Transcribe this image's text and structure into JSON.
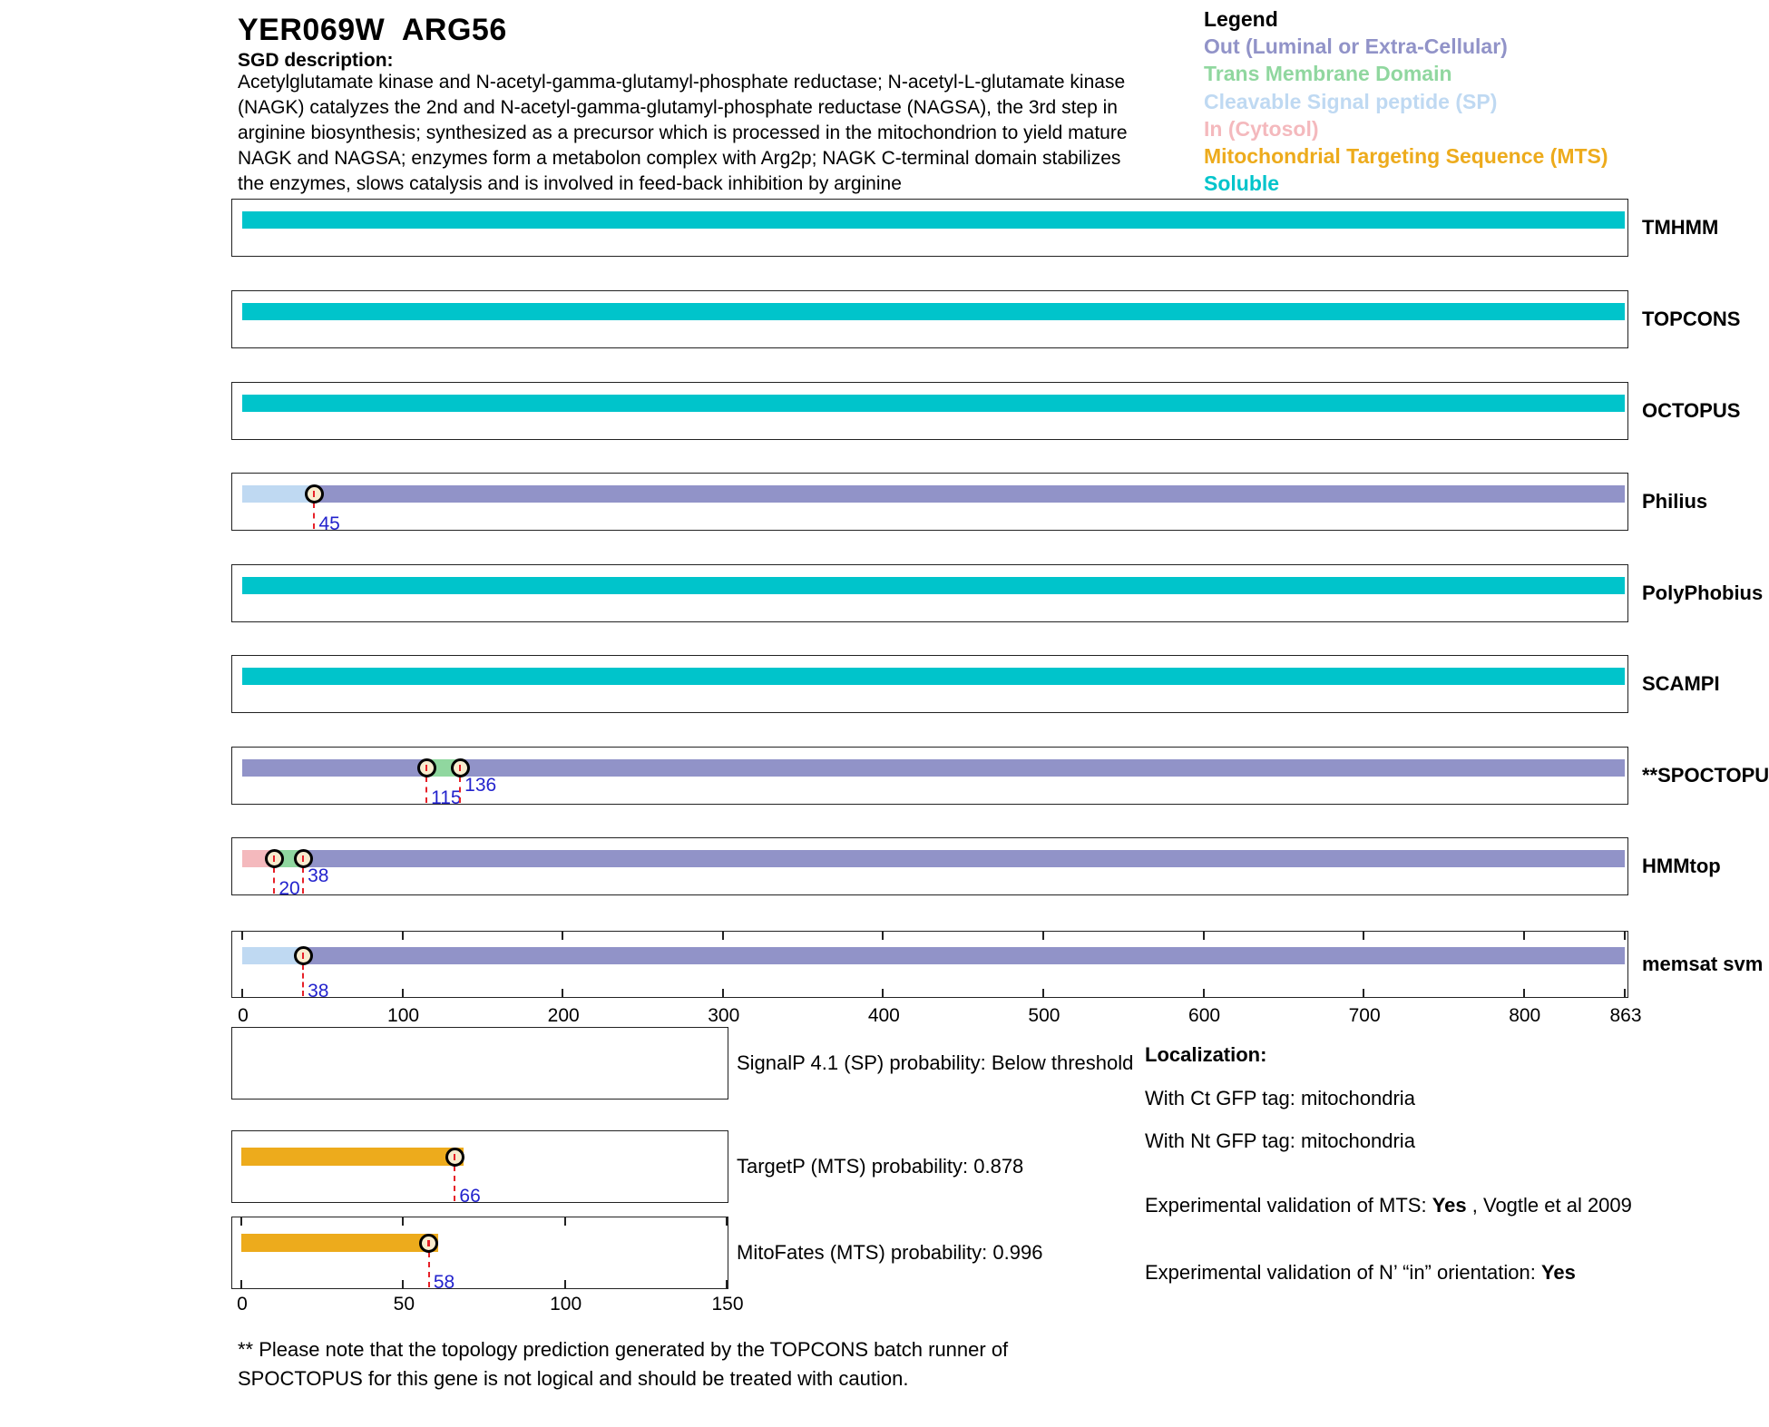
{
  "header": {
    "title": "YER069W  ARG56",
    "sgd_label": "SGD description:",
    "description": "Acetylglutamate kinase and N-acetyl-gamma-glutamyl-phosphate reductase; N-acetyl-L-glutamate kinase (NAGK) catalyzes the 2nd and N-acetyl-gamma-glutamyl-phosphate reductase (NAGSA), the 3rd step in arginine biosynthesis; synthesized as a precursor which is processed in the mitochondrion to yield mature NAGK and NAGSA; enzymes form a metabolon complex with Arg2p; NAGK C-terminal domain stabilizes the enzymes, slows catalysis and is involved in feed-back inhibition by arginine"
  },
  "legend": {
    "title": "Legend",
    "items": [
      {
        "label": "Out (Luminal or Extra-Cellular)",
        "color": "#9193C8"
      },
      {
        "label": "Trans Membrane Domain",
        "color": "#90D79F"
      },
      {
        "label": "Cleavable Signal peptide (SP)",
        "color": "#BFD9F2"
      },
      {
        "label": "In (Cytosol)",
        "color": "#F4B9BD"
      },
      {
        "label": "Mitochondrial Targeting Sequence (MTS)",
        "color": "#EDAB1C"
      },
      {
        "label": "Soluble",
        "color": "#00C4CB"
      }
    ]
  },
  "chart_data": {
    "type": "topology_tracks",
    "protein_length": 863,
    "x_axis": {
      "min": 0,
      "max": 863,
      "tick_values": [
        0,
        100,
        200,
        300,
        400,
        500,
        600,
        700,
        800,
        863
      ]
    },
    "region_colors": {
      "soluble": "#00C4CB",
      "out": "#9193C8",
      "tm": "#90D79F",
      "sp": "#BFD9F2",
      "in": "#F4B9BD",
      "mts": "#EDAB1C"
    },
    "tracks": [
      {
        "name": "TMHMM",
        "segments": [
          {
            "start": 0,
            "end": 863,
            "type": "soluble"
          }
        ],
        "markers": [],
        "axis_ticks": false
      },
      {
        "name": "TOPCONS",
        "segments": [
          {
            "start": 0,
            "end": 863,
            "type": "soluble"
          }
        ],
        "markers": [],
        "axis_ticks": false
      },
      {
        "name": "OCTOPUS",
        "segments": [
          {
            "start": 0,
            "end": 863,
            "type": "soluble"
          }
        ],
        "markers": [],
        "axis_ticks": false
      },
      {
        "name": "Philius",
        "segments": [
          {
            "start": 0,
            "end": 45,
            "type": "sp"
          },
          {
            "start": 45,
            "end": 863,
            "type": "out"
          }
        ],
        "markers": [
          {
            "pos": 45,
            "label": "45",
            "level": 0
          }
        ],
        "axis_ticks": false
      },
      {
        "name": "PolyPhobius",
        "segments": [
          {
            "start": 0,
            "end": 863,
            "type": "soluble"
          }
        ],
        "markers": [],
        "axis_ticks": false
      },
      {
        "name": "SCAMPI",
        "segments": [
          {
            "start": 0,
            "end": 863,
            "type": "soluble"
          }
        ],
        "markers": [],
        "axis_ticks": false
      },
      {
        "name": "**SPOCTOPUS",
        "segments": [
          {
            "start": 0,
            "end": 115,
            "type": "out"
          },
          {
            "start": 115,
            "end": 136,
            "type": "tm"
          },
          {
            "start": 136,
            "end": 863,
            "type": "out"
          }
        ],
        "markers": [
          {
            "pos": 115,
            "label": "115",
            "level": 0
          },
          {
            "pos": 136,
            "label": "136",
            "level": 1
          }
        ],
        "axis_ticks": false
      },
      {
        "name": "HMMtop",
        "segments": [
          {
            "start": 0,
            "end": 20,
            "type": "in"
          },
          {
            "start": 20,
            "end": 38,
            "type": "tm"
          },
          {
            "start": 38,
            "end": 863,
            "type": "out"
          }
        ],
        "markers": [
          {
            "pos": 20,
            "label": "20",
            "level": 0
          },
          {
            "pos": 38,
            "label": "38",
            "level": 1
          }
        ],
        "axis_ticks": false
      },
      {
        "name": "memsat svm",
        "segments": [
          {
            "start": 0,
            "end": 38,
            "type": "sp"
          },
          {
            "start": 38,
            "end": 863,
            "type": "out"
          }
        ],
        "markers": [
          {
            "pos": 38,
            "label": "38",
            "level": 0
          }
        ],
        "axis_ticks": true
      }
    ],
    "probability_plots": {
      "x_axis": {
        "min": 0,
        "max": 150,
        "tick_values": [
          0,
          50,
          100,
          150
        ]
      },
      "plots": [
        {
          "label": "SignalP 4.1 (SP) probability: Below threshold",
          "segments": [],
          "markers": [],
          "axis_ticks": false
        },
        {
          "label": "TargetP (MTS) probability: 0.878",
          "segments": [
            {
              "start": 0,
              "end": 66,
              "type": "mts"
            }
          ],
          "markers": [
            {
              "pos": 66,
              "label": "66",
              "level": 0
            }
          ],
          "axis_ticks": false
        },
        {
          "label": "MitoFates (MTS) probability: 0.996",
          "segments": [
            {
              "start": 0,
              "end": 58,
              "type": "mts"
            }
          ],
          "markers": [
            {
              "pos": 58,
              "label": "58",
              "level": 0
            }
          ],
          "axis_ticks": true
        }
      ]
    }
  },
  "localization": {
    "title": "Localization:",
    "ct_line": "With Ct GFP tag: mitochondria",
    "nt_line": "With Nt GFP tag: mitochondria",
    "mts_prefix": "Experimental validation of MTS: ",
    "mts_value": "Yes",
    "mts_suffix": " , Vogtle et al 2009",
    "orientation_prefix": "Experimental validation of N’ “in” orientation: ",
    "orientation_value": "Yes"
  },
  "footnote": "** Please note that the topology prediction generated by the TOPCONS batch runner of\nSPOCTOPUS for this gene is not logical and should be treated with caution.",
  "style": {
    "marker_fill": "#F8ECCE",
    "marker_stroke": "#000000",
    "dash_color": "#E62129",
    "pos_label_color": "#2323CD"
  }
}
